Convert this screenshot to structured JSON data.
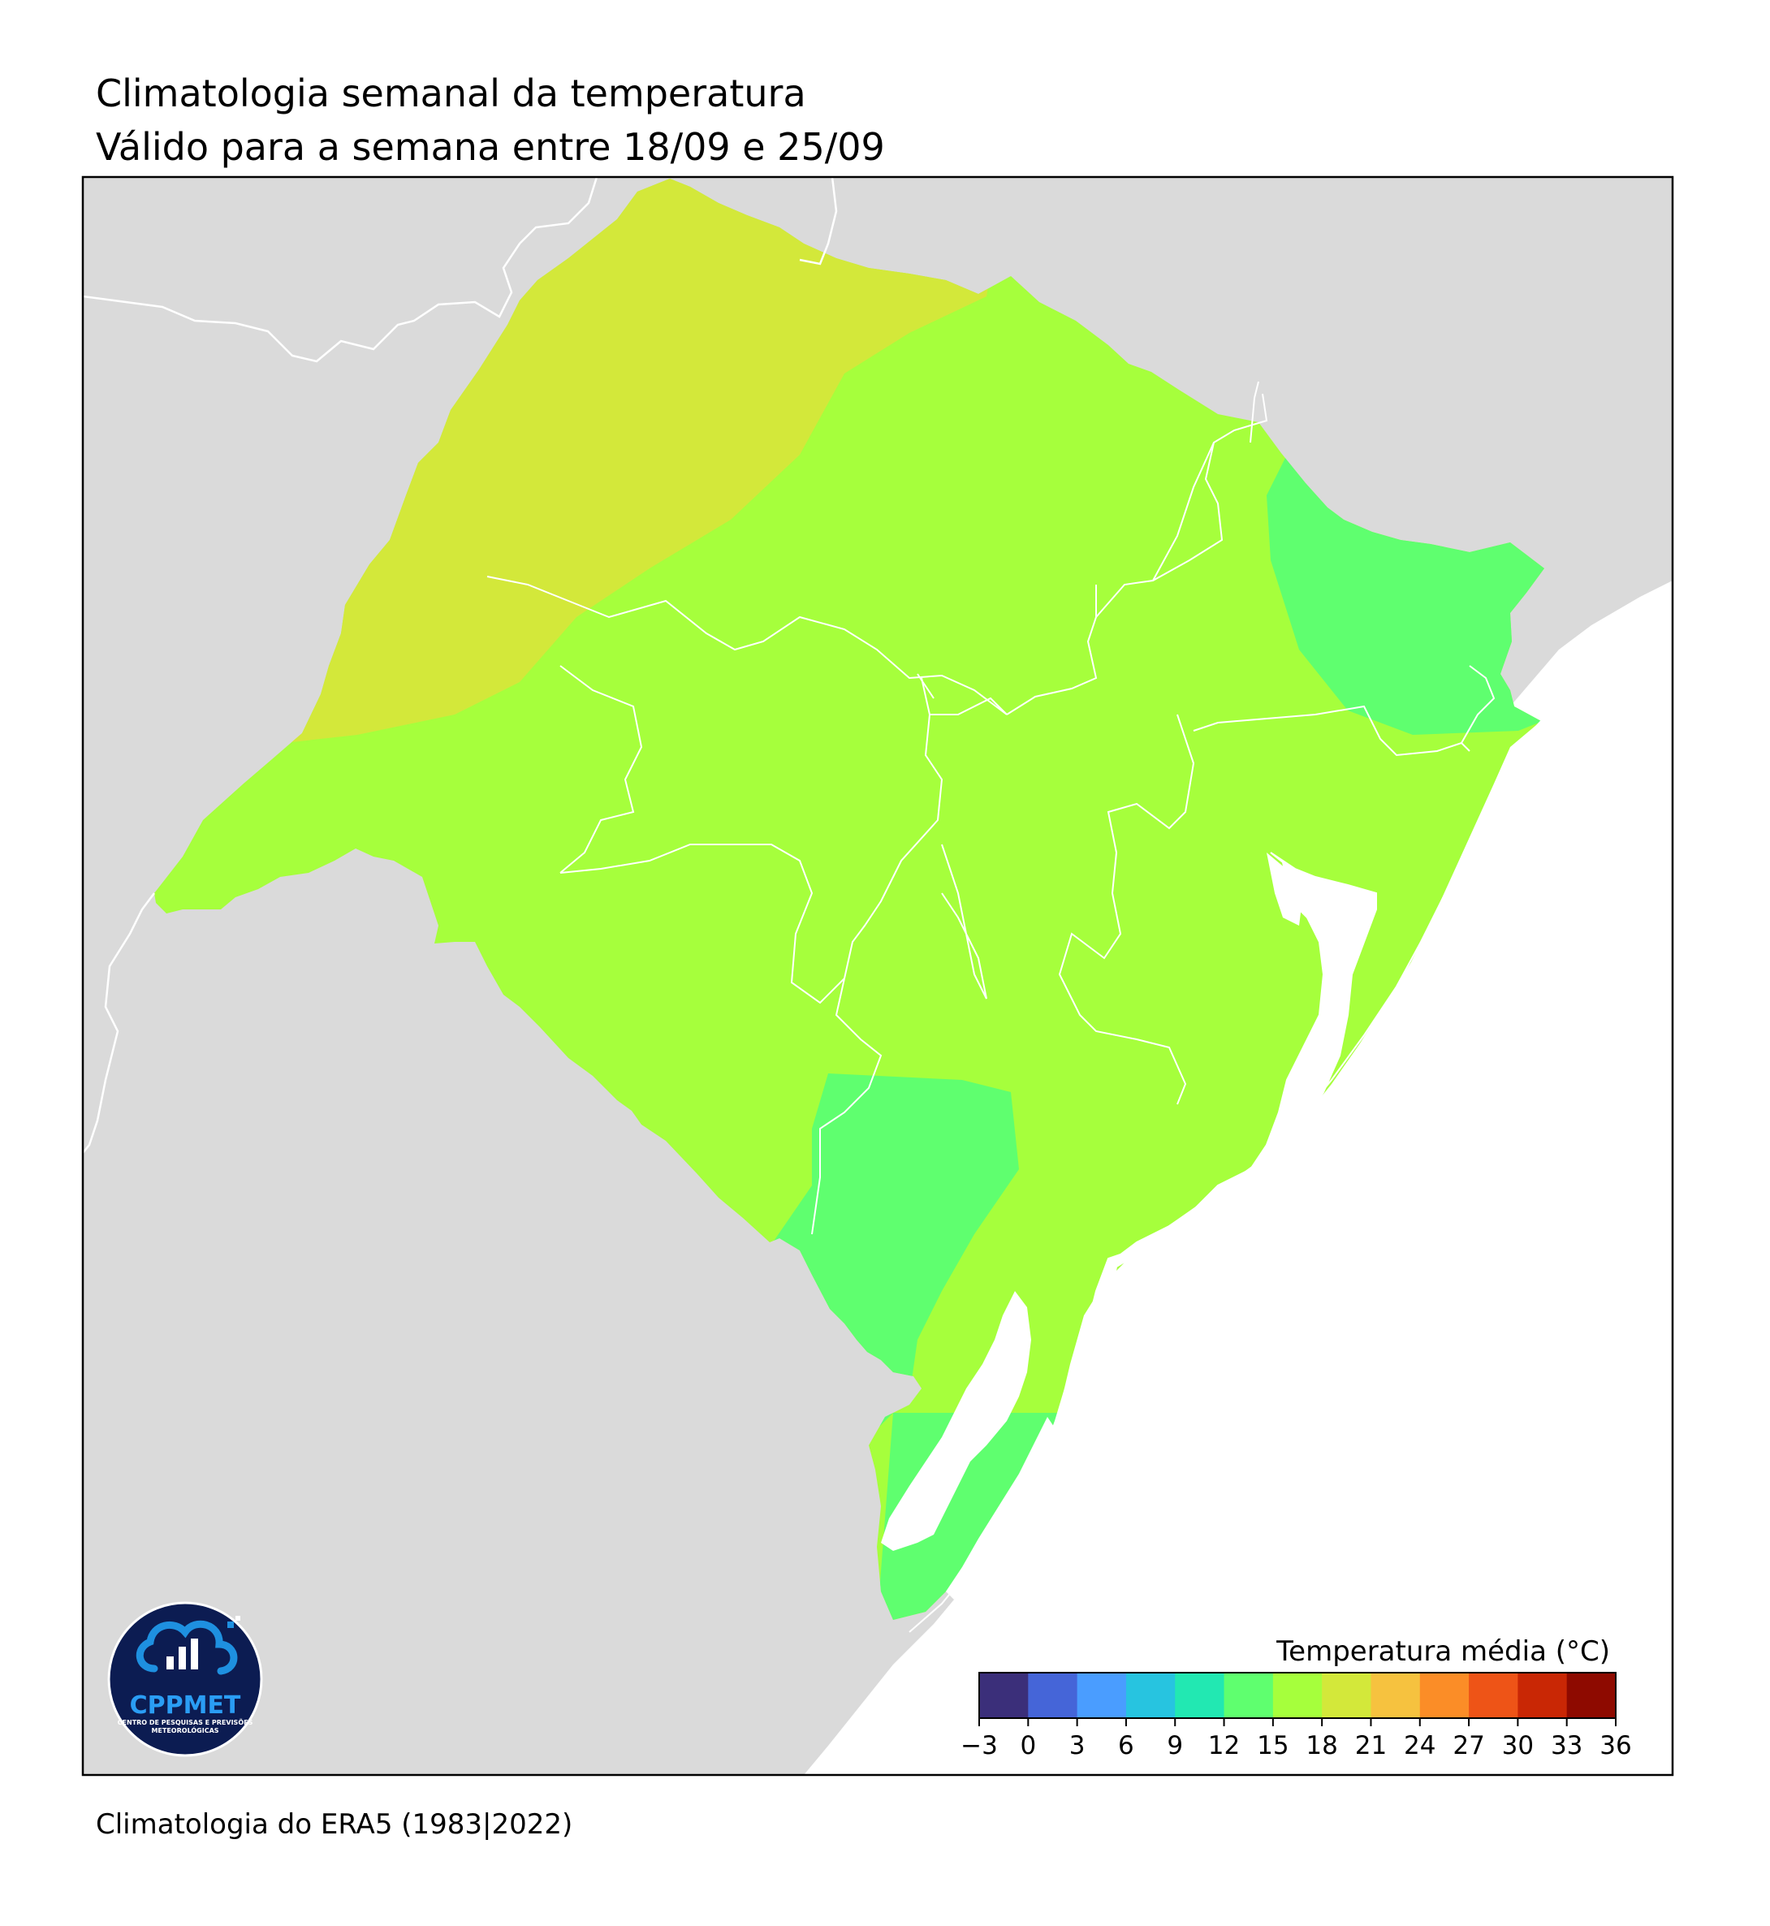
{
  "header": {
    "title": "Climatologia semanal da temperatura",
    "subtitle": "Válido para a semana entre 18/09 e 25/09"
  },
  "footer": {
    "source": "Climatologia do ERA5 (1983|2022)"
  },
  "logo": {
    "name": "CPPMET",
    "tagline_line1": "CENTRO DE PESQUISAS E PREVISÕES",
    "tagline_line2": "METEOROLÓGICAS"
  },
  "colorbar": {
    "title": "Temperatura média (°C)",
    "ticks": [
      "−3",
      "0",
      "3",
      "6",
      "9",
      "12",
      "15",
      "18",
      "21",
      "24",
      "27",
      "30",
      "33",
      "36"
    ],
    "bins": [
      {
        "range": [
          -3,
          0
        ],
        "color": "#3b2f7a"
      },
      {
        "range": [
          0,
          3
        ],
        "color": "#4565d8"
      },
      {
        "range": [
          3,
          6
        ],
        "color": "#4a9dff"
      },
      {
        "range": [
          6,
          9
        ],
        "color": "#27c4e0"
      },
      {
        "range": [
          9,
          12
        ],
        "color": "#22e8b2"
      },
      {
        "range": [
          12,
          15
        ],
        "color": "#5fff6f"
      },
      {
        "range": [
          15,
          18
        ],
        "color": "#a6ff3c"
      },
      {
        "range": [
          18,
          21
        ],
        "color": "#d3e83a"
      },
      {
        "range": [
          21,
          24
        ],
        "color": "#f6c23f"
      },
      {
        "range": [
          24,
          27
        ],
        "color": "#fb8d27"
      },
      {
        "range": [
          27,
          30
        ],
        "color": "#ee5417"
      },
      {
        "range": [
          30,
          33
        ],
        "color": "#c92705"
      },
      {
        "range": [
          33,
          36
        ],
        "color": "#8e0a00"
      }
    ]
  },
  "colors": {
    "land_outside": "#dadada",
    "ocean": "#ffffff",
    "band_18_21": "#d3e83a",
    "band_15_18": "#a6ff3c",
    "band_12_15": "#5fff6f"
  }
}
